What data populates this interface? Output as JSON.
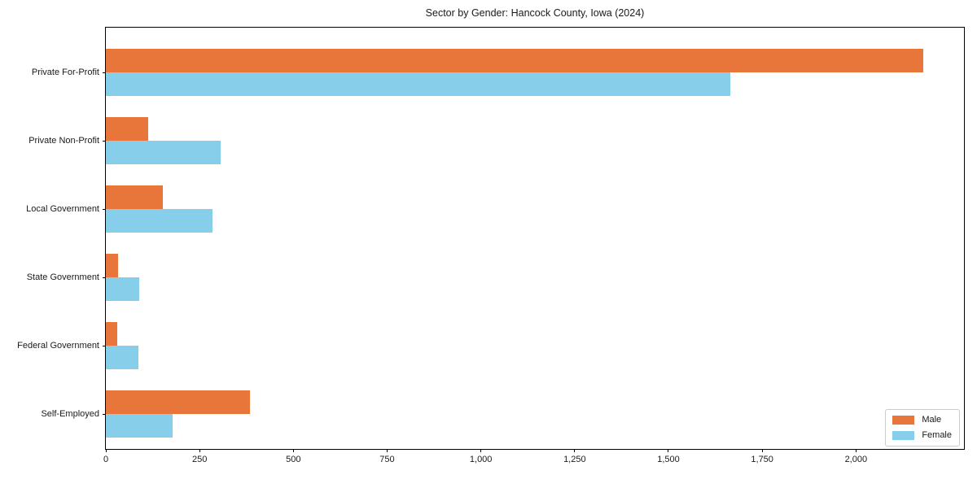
{
  "chart_data": {
    "type": "bar",
    "orientation": "horizontal",
    "title": "Sector by Gender: Hancock County, Iowa (2024)",
    "categories": [
      "Private For-Profit",
      "Private Non-Profit",
      "Local Government",
      "State Government",
      "Federal Government",
      "Self-Employed"
    ],
    "series": [
      {
        "name": "Male",
        "color": "#e8763b",
        "values": [
          2180,
          113,
          152,
          33,
          30,
          384
        ]
      },
      {
        "name": "Female",
        "color": "#87ceeb",
        "values": [
          1664,
          307,
          284,
          89,
          86,
          178
        ]
      }
    ],
    "xlabel": "",
    "ylabel": "",
    "xlim": [
      0,
      2288
    ],
    "xticks": [
      0,
      250,
      500,
      750,
      1000,
      1250,
      1500,
      1750,
      2000
    ],
    "xtick_labels": [
      "0",
      "250",
      "500",
      "750",
      "1,000",
      "1,250",
      "1,500",
      "1,750",
      "2,000"
    ],
    "grid": false,
    "legend": {
      "position": "lower right",
      "entries": [
        "Male",
        "Female"
      ]
    }
  }
}
